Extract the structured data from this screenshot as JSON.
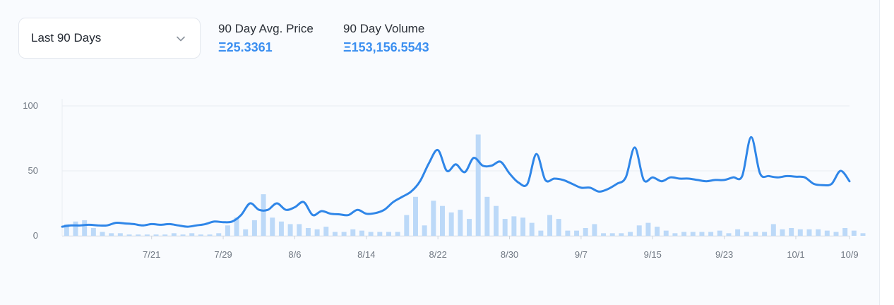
{
  "controls": {
    "range_label": "Last 90 Days"
  },
  "stats": {
    "avg_price_label": "90 Day Avg. Price",
    "avg_price_value": "Ξ25.3361",
    "volume_label": "90 Day Volume",
    "volume_value": "Ξ153,156.5543"
  },
  "colors": {
    "line": "#2f86e8",
    "bar": "#bcd9f8",
    "value_text": "#3b8ff0",
    "grid": "#e9edf2"
  },
  "icons": {
    "dropdown": "chevron-down-icon"
  },
  "chart_data": {
    "type": "line",
    "title": "",
    "xlabel": "",
    "ylabel": "",
    "ylim": [
      0,
      100
    ],
    "yticks": [
      0,
      50,
      100
    ],
    "xticks": [
      "7/21",
      "7/29",
      "8/6",
      "8/14",
      "8/22",
      "8/30",
      "9/7",
      "9/15",
      "9/23",
      "10/1",
      "10/9"
    ],
    "grid": "horizontal",
    "series": [
      {
        "kind": "line",
        "values": [
          7,
          8,
          8,
          8.5,
          8,
          8,
          10,
          9.5,
          9,
          8,
          9,
          8.5,
          9,
          8,
          7,
          8,
          9,
          11,
          10.5,
          11,
          16,
          25,
          20,
          20,
          25,
          20,
          22,
          26,
          16,
          19,
          17,
          16.5,
          16,
          20,
          17,
          17.5,
          20,
          26,
          30,
          34,
          42,
          56,
          66,
          50,
          55,
          49,
          60,
          54,
          54,
          57,
          48,
          41,
          40,
          63,
          43,
          44,
          43,
          40,
          37,
          37,
          34,
          36,
          40,
          45,
          68,
          43,
          45,
          42,
          45,
          44,
          44,
          43,
          42,
          43,
          43,
          45,
          46,
          76,
          48,
          46,
          45,
          46,
          45.5,
          45,
          40,
          39,
          40,
          50,
          42
        ]
      },
      {
        "kind": "bar",
        "values": [
          9,
          11,
          12,
          6,
          3,
          2,
          2,
          1,
          1,
          1,
          1,
          1,
          2,
          1,
          2,
          1,
          1,
          2,
          8,
          14,
          5,
          12,
          32,
          14,
          11,
          9,
          9,
          6,
          5,
          7,
          3,
          3,
          5,
          4,
          3,
          3,
          3,
          3,
          16,
          30,
          8,
          27,
          23,
          18,
          20,
          13,
          78,
          30,
          23,
          13,
          15,
          14,
          10,
          4,
          16,
          13,
          4,
          4,
          6,
          9,
          2,
          2,
          2,
          3,
          8,
          10,
          7,
          4,
          2,
          3,
          3,
          3,
          3,
          4,
          2,
          5,
          3,
          3,
          3,
          9,
          5,
          6,
          5,
          5,
          5,
          4,
          3,
          6,
          4,
          2
        ]
      }
    ]
  }
}
